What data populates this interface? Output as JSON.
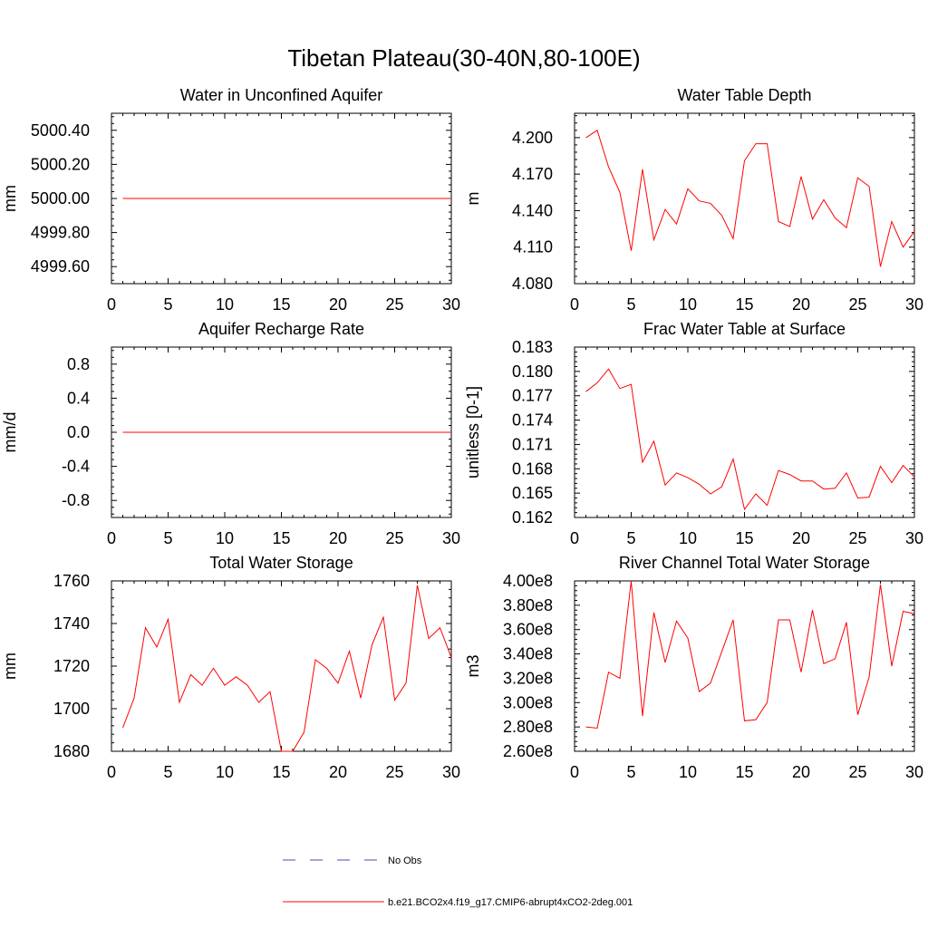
{
  "figure": {
    "title": "Tibetan Plateau(30-40N,80-100E)",
    "line_color": "#ff0000",
    "obs_color": "#4a4ab0"
  },
  "legend": {
    "obs_label": "No Obs",
    "model_label": "b.e21.BCO2x4.f19_g17.CMIP6-abrupt4xCO2-2deg.001"
  },
  "chart_data": [
    {
      "type": "line",
      "title": "Water in Unconfined Aquifer",
      "ylabel": "mm",
      "xlim": [
        0,
        30
      ],
      "ylim": [
        4999.5,
        5000.5
      ],
      "xticks": [
        0,
        5,
        10,
        15,
        20,
        25,
        30
      ],
      "yticks": [
        4999.6,
        4999.8,
        5000.0,
        5000.2,
        5000.4
      ],
      "ytick_labels": [
        "4999.60",
        "4999.80",
        "5000.00",
        "5000.20",
        "5000.40"
      ],
      "series": [
        {
          "x": [
            1,
            2,
            3,
            4,
            5,
            6,
            7,
            8,
            9,
            10,
            11,
            12,
            13,
            14,
            15,
            16,
            17,
            18,
            19,
            20,
            21,
            22,
            23,
            24,
            25,
            26,
            27,
            28,
            29,
            30
          ],
          "values": [
            5000,
            5000,
            5000,
            5000,
            5000,
            5000,
            5000,
            5000,
            5000,
            5000,
            5000,
            5000,
            5000,
            5000,
            5000,
            5000,
            5000,
            5000,
            5000,
            5000,
            5000,
            5000,
            5000,
            5000,
            5000,
            5000,
            5000,
            5000,
            5000,
            5000
          ]
        }
      ]
    },
    {
      "type": "line",
      "title": "Water Table Depth",
      "ylabel": "m",
      "xlim": [
        0,
        30
      ],
      "ylim": [
        4.08,
        4.22
      ],
      "xticks": [
        0,
        5,
        10,
        15,
        20,
        25,
        30
      ],
      "yticks": [
        4.08,
        4.11,
        4.14,
        4.17,
        4.2
      ],
      "ytick_labels": [
        "4.080",
        "4.110",
        "4.140",
        "4.170",
        "4.200"
      ],
      "series": [
        {
          "x": [
            1,
            2,
            3,
            4,
            5,
            6,
            7,
            8,
            9,
            10,
            11,
            12,
            13,
            14,
            15,
            16,
            17,
            18,
            19,
            20,
            21,
            22,
            23,
            24,
            25,
            26,
            27,
            28,
            29,
            30
          ],
          "values": [
            4.2,
            4.206,
            4.176,
            4.155,
            4.107,
            4.174,
            4.116,
            4.141,
            4.129,
            4.158,
            4.148,
            4.146,
            4.136,
            4.117,
            4.181,
            4.195,
            4.195,
            4.131,
            4.127,
            4.168,
            4.133,
            4.149,
            4.134,
            4.126,
            4.167,
            4.16,
            4.094,
            4.131,
            4.11,
            4.123
          ]
        }
      ]
    },
    {
      "type": "line",
      "title": "Aquifer Recharge Rate",
      "ylabel": "mm/d",
      "xlim": [
        0,
        30
      ],
      "ylim": [
        -1.0,
        1.0
      ],
      "xticks": [
        0,
        5,
        10,
        15,
        20,
        25,
        30
      ],
      "yticks": [
        -0.8,
        -0.4,
        0.0,
        0.4,
        0.8
      ],
      "ytick_labels": [
        "-0.8",
        "-0.4",
        "0.0",
        "0.4",
        "0.8"
      ],
      "series": [
        {
          "x": [
            1,
            2,
            3,
            4,
            5,
            6,
            7,
            8,
            9,
            10,
            11,
            12,
            13,
            14,
            15,
            16,
            17,
            18,
            19,
            20,
            21,
            22,
            23,
            24,
            25,
            26,
            27,
            28,
            29,
            30
          ],
          "values": [
            0,
            0,
            0,
            0,
            0,
            0,
            0,
            0,
            0,
            0,
            0,
            0,
            0,
            0,
            0,
            0,
            0,
            0,
            0,
            0,
            0,
            0,
            0,
            0,
            0,
            0,
            0,
            0,
            0,
            0
          ]
        }
      ]
    },
    {
      "type": "line",
      "title": "Frac Water Table at Surface",
      "ylabel": "unitless [0-1]",
      "xlim": [
        0,
        30
      ],
      "ylim": [
        0.162,
        0.183
      ],
      "xticks": [
        0,
        5,
        10,
        15,
        20,
        25,
        30
      ],
      "yticks": [
        0.162,
        0.165,
        0.168,
        0.171,
        0.174,
        0.177,
        0.18,
        0.183
      ],
      "ytick_labels": [
        "0.162",
        "0.165",
        "0.168",
        "0.171",
        "0.174",
        "0.177",
        "0.180",
        "0.183"
      ],
      "series": [
        {
          "x": [
            1,
            2,
            3,
            4,
            5,
            6,
            7,
            8,
            9,
            10,
            11,
            12,
            13,
            14,
            15,
            16,
            17,
            18,
            19,
            20,
            21,
            22,
            23,
            24,
            25,
            26,
            27,
            28,
            29,
            30
          ],
          "values": [
            0.1775,
            0.1786,
            0.1803,
            0.1779,
            0.1784,
            0.1688,
            0.1714,
            0.166,
            0.1675,
            0.1669,
            0.1661,
            0.1649,
            0.1658,
            0.1692,
            0.163,
            0.1649,
            0.1635,
            0.1678,
            0.1673,
            0.1665,
            0.1665,
            0.1655,
            0.1656,
            0.1675,
            0.1644,
            0.1645,
            0.1683,
            0.1663,
            0.1684,
            0.167
          ]
        }
      ]
    },
    {
      "type": "line",
      "title": "Total Water Storage",
      "ylabel": "mm",
      "xlim": [
        0,
        30
      ],
      "ylim": [
        1680,
        1760
      ],
      "xticks": [
        0,
        5,
        10,
        15,
        20,
        25,
        30
      ],
      "yticks": [
        1680,
        1700,
        1720,
        1740,
        1760
      ],
      "ytick_labels": [
        "1680",
        "1700",
        "1720",
        "1740",
        "1760"
      ],
      "series": [
        {
          "x": [
            1,
            2,
            3,
            4,
            5,
            6,
            7,
            8,
            9,
            10,
            11,
            12,
            13,
            14,
            15,
            16,
            17,
            18,
            19,
            20,
            21,
            22,
            23,
            24,
            25,
            26,
            27,
            28,
            29,
            30
          ],
          "values": [
            1691,
            1705,
            1738,
            1729,
            1742,
            1703,
            1716,
            1711,
            1719,
            1711,
            1715,
            1711,
            1703,
            1708,
            1680,
            1680,
            1689,
            1723,
            1719,
            1712,
            1727,
            1705,
            1730,
            1743,
            1704,
            1712,
            1758,
            1733,
            1738,
            1724
          ]
        }
      ]
    },
    {
      "type": "line",
      "title": "River Channel Total Water Storage",
      "ylabel": "m3",
      "xlim": [
        0,
        30
      ],
      "ylim": [
        260000000,
        400000000
      ],
      "xticks": [
        0,
        5,
        10,
        15,
        20,
        25,
        30
      ],
      "yticks": [
        260000000,
        280000000,
        300000000,
        320000000,
        340000000,
        360000000,
        380000000,
        400000000
      ],
      "ytick_labels": [
        "2.60e8",
        "2.80e8",
        "3.00e8",
        "3.20e8",
        "3.40e8",
        "3.60e8",
        "3.80e8",
        "4.00e8"
      ],
      "series": [
        {
          "x": [
            1,
            2,
            3,
            4,
            5,
            6,
            7,
            8,
            9,
            10,
            11,
            12,
            13,
            14,
            15,
            16,
            17,
            18,
            19,
            20,
            21,
            22,
            23,
            24,
            25,
            26,
            27,
            28,
            29,
            30
          ],
          "values": [
            280000000,
            279000000,
            325000000,
            320000000,
            400000000,
            289000000,
            374000000,
            333000000,
            367000000,
            353000000,
            309000000,
            316000000,
            342000000,
            368000000,
            285000000,
            286000000,
            300000000,
            368000000,
            368000000,
            325000000,
            376000000,
            332000000,
            336000000,
            366000000,
            290000000,
            321000000,
            397000000,
            330000000,
            375000000,
            373000000
          ]
        }
      ]
    }
  ]
}
